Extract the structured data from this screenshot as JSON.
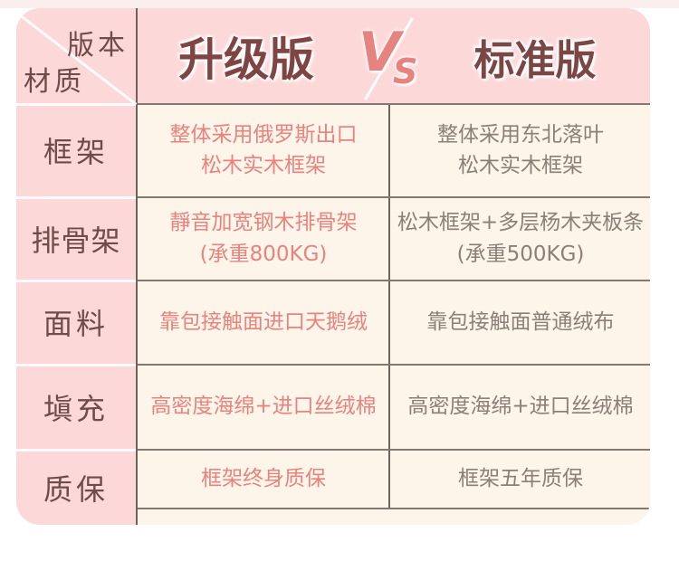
{
  "colors": {
    "table_pink": "#fcd8d9",
    "content_cream": "#fdf4ea",
    "grid_dark": "#6f615d",
    "grid_mid": "#857872",
    "label_text": "#6d4c4a",
    "header_title_text": "#7e4543",
    "vs_salmon": "#e5837e",
    "upgraded_text": "#e9837e",
    "standard_text": "#8b8077",
    "top_strip": "#fbeeee"
  },
  "header": {
    "corner_top_label": "版本",
    "corner_bottom_label": "材质",
    "upgraded_title": "升级版",
    "vs_v": "V",
    "vs_s": "S",
    "standard_title": "标准版"
  },
  "rows": [
    {
      "label": "框架",
      "upgraded": [
        "整体采用俄罗斯出口",
        "松木实木框架"
      ],
      "standard": [
        "整体采用东北落叶",
        "松木实木框架"
      ]
    },
    {
      "label": "排骨架",
      "upgraded": [
        "靜音加宽钢木排骨架",
        "(承重800KG)"
      ],
      "standard": [
        "松木框架+多层杨木夹板条",
        "(承重500KG)"
      ]
    },
    {
      "label": "面料",
      "upgraded": [
        "靠包接触面进口天鹅绒"
      ],
      "standard": [
        "靠包接触面普通绒布"
      ]
    },
    {
      "label": "塡充",
      "upgraded": [
        "高密度海绵+进口丝绒棉"
      ],
      "standard": [
        "高密度海绵+进口丝绒棉"
      ]
    },
    {
      "label": "质保",
      "upgraded": [
        "框架终身质保"
      ],
      "standard": [
        "框架五年质保"
      ]
    }
  ],
  "chart_data": {
    "type": "table",
    "title": "升级版 VS 标准版",
    "corner_headers": [
      "版本",
      "材质"
    ],
    "columns": [
      "材质",
      "升级版",
      "标准版"
    ],
    "rows": [
      [
        "框架",
        "整体采用俄罗斯出口 松木实木框架",
        "整体采用东北落叶 松木实木框架"
      ],
      [
        "排骨架",
        "靜音加宽钢木排骨架 (承重800KG)",
        "松木框架+多层杨木夹板条 (承重500KG)"
      ],
      [
        "面料",
        "靠包接触面进口天鹅绒",
        "靠包接触面普通绒布"
      ],
      [
        "塡充",
        "高密度海绵+进口丝绒棉",
        "高密度海绵+进口丝绒棉"
      ],
      [
        "质保",
        "框架终身质保",
        "框架五年质保"
      ]
    ],
    "legend_position": "none",
    "grid": true
  }
}
